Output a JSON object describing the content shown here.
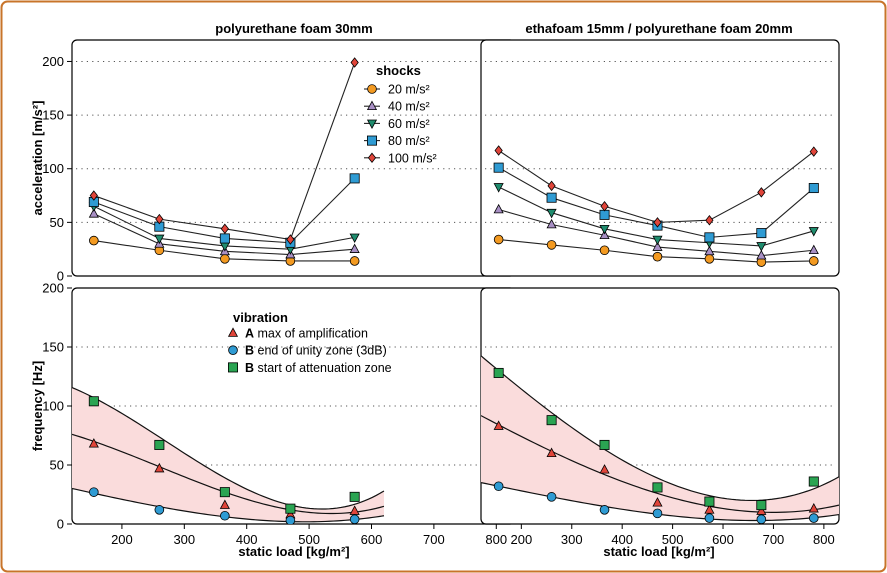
{
  "colors": {
    "frame": "#c8742a",
    "band": "#fadcdc",
    "orange": "#f39a21",
    "purple": "#a88fc4",
    "teal": "#1f8c6e",
    "blue": "#2f9bd3",
    "red": "#e0453a",
    "green": "#2aa452"
  },
  "chart_data": [
    {
      "type": "line",
      "panel": "top-left",
      "title": "polyurethane foam 30mm",
      "xlabel": "",
      "ylabel": "acceleration [m/s²]",
      "xlim": [
        120,
        830
      ],
      "ylim": [
        0,
        220
      ],
      "yticks": [
        "0",
        "50",
        "100",
        "150",
        "200"
      ],
      "grid": "horizontal dotted",
      "legend": {
        "title": "shocks",
        "placement": "top-right",
        "entries": [
          "20 m/s²",
          "40 m/s²",
          "60 m/s²",
          "80 m/s²",
          "100 m/s²"
        ]
      },
      "x": [
        155,
        260,
        365,
        470,
        573
      ],
      "series": [
        {
          "name": "20 m/s²",
          "marker": "circle",
          "color": "orange",
          "values": [
            33,
            24,
            16,
            14,
            14
          ]
        },
        {
          "name": "40 m/s²",
          "marker": "triangle-up",
          "color": "purple",
          "values": [
            58,
            30,
            23,
            20,
            25
          ]
        },
        {
          "name": "60 m/s²",
          "marker": "triangle-down",
          "color": "teal",
          "values": [
            65,
            35,
            28,
            25,
            36
          ]
        },
        {
          "name": "80 m/s²",
          "marker": "square",
          "color": "blue",
          "values": [
            69,
            46,
            35,
            31,
            91
          ]
        },
        {
          "name": "100 m/s²",
          "marker": "diamond",
          "color": "red",
          "values": [
            75,
            53,
            44,
            34,
            199
          ]
        }
      ]
    },
    {
      "type": "line",
      "panel": "top-right",
      "title": "ethafoam 15mm / polyurethane foam 20mm",
      "xlabel": "",
      "ylabel": "",
      "xlim": [
        120,
        830
      ],
      "ylim": [
        0,
        220
      ],
      "grid": "horizontal dotted",
      "x": [
        155,
        260,
        365,
        470,
        573,
        676,
        780
      ],
      "series": [
        {
          "name": "20 m/s²",
          "marker": "circle",
          "color": "orange",
          "values": [
            34,
            29,
            24,
            18,
            16,
            13,
            14
          ]
        },
        {
          "name": "40 m/s²",
          "marker": "triangle-up",
          "color": "purple",
          "values": [
            62,
            48,
            38,
            27,
            23,
            19,
            24
          ]
        },
        {
          "name": "60 m/s²",
          "marker": "triangle-down",
          "color": "teal",
          "values": [
            83,
            59,
            44,
            34,
            31,
            28,
            42
          ]
        },
        {
          "name": "80 m/s²",
          "marker": "square",
          "color": "blue",
          "values": [
            101,
            73,
            57,
            47,
            36,
            40,
            82
          ]
        },
        {
          "name": "100 m/s²",
          "marker": "diamond",
          "color": "red",
          "values": [
            117,
            84,
            65,
            50,
            52,
            78,
            116
          ]
        }
      ]
    },
    {
      "type": "scatter",
      "panel": "bottom-left",
      "title": "",
      "xlabel": "static load [kg/m²]",
      "ylabel": "frequency [Hz]",
      "xlim": [
        120,
        830
      ],
      "ylim": [
        0,
        200
      ],
      "xticks": [
        "200",
        "300",
        "400",
        "500",
        "600",
        "700",
        "800"
      ],
      "yticks": [
        "0",
        "50",
        "100",
        "150",
        "200"
      ],
      "grid": "horizontal dotted",
      "legend": {
        "title": "vibration",
        "placement": "top-right",
        "entries": [
          {
            "bold": "A",
            "text": "max of amplification"
          },
          {
            "bold": "B",
            "text": "end of unity zone (3dB)"
          },
          {
            "bold": "B",
            "text": "start of attenuation zone"
          }
        ]
      },
      "fit_x_range": [
        120,
        620
      ],
      "x": [
        155,
        260,
        365,
        470,
        573
      ],
      "series": [
        {
          "name": "max of amplification",
          "marker": "triangle-up",
          "color": "red",
          "values": [
            68,
            47,
            16,
            8,
            11
          ],
          "fit": [
            [
              155,
              70
            ],
            [
              300,
              40
            ],
            [
              470,
              12
            ],
            [
              620,
              15
            ]
          ]
        },
        {
          "name": "end of unity zone (3dB)",
          "marker": "circle",
          "color": "blue",
          "values": [
            27,
            12,
            7,
            3,
            4
          ],
          "fit": [
            [
              155,
              26
            ],
            [
              300,
              11
            ],
            [
              470,
              2
            ],
            [
              620,
              7
            ]
          ]
        },
        {
          "name": "start of attenuation zone",
          "marker": "square",
          "color": "green",
          "values": [
            104,
            67,
            27,
            13,
            23
          ],
          "fit": [
            [
              155,
              107
            ],
            [
              300,
              60
            ],
            [
              470,
              16
            ],
            [
              620,
              28
            ]
          ]
        }
      ]
    },
    {
      "type": "scatter",
      "panel": "bottom-right",
      "title": "",
      "xlabel": "static load [kg/m²]",
      "ylabel": "",
      "xlim": [
        120,
        830
      ],
      "ylim": [
        0,
        200
      ],
      "xticks": [
        "200",
        "300",
        "400",
        "500",
        "600",
        "700",
        "800"
      ],
      "grid": "horizontal dotted",
      "fit_x_range": [
        120,
        830
      ],
      "x": [
        155,
        260,
        365,
        470,
        573,
        676,
        780
      ],
      "series": [
        {
          "name": "max of amplification",
          "marker": "triangle-up",
          "color": "red",
          "values": [
            83,
            60,
            46,
            18,
            12,
            11,
            13
          ],
          "fit": [
            [
              155,
              84
            ],
            [
              440,
              30
            ],
            [
              680,
              10
            ],
            [
              830,
              16
            ]
          ]
        },
        {
          "name": "end of unity zone (3dB)",
          "marker": "circle",
          "color": "blue",
          "values": [
            32,
            23,
            12,
            9,
            5,
            4,
            5
          ],
          "fit": [
            [
              155,
              32
            ],
            [
              440,
              10
            ],
            [
              680,
              3
            ],
            [
              830,
              8
            ]
          ]
        },
        {
          "name": "start of attenuation zone",
          "marker": "square",
          "color": "green",
          "values": [
            128,
            88,
            67,
            31,
            19,
            16,
            36
          ],
          "fit": [
            [
              155,
              130
            ],
            [
              440,
              45
            ],
            [
              650,
              20
            ],
            [
              830,
              40
            ]
          ]
        }
      ]
    }
  ]
}
